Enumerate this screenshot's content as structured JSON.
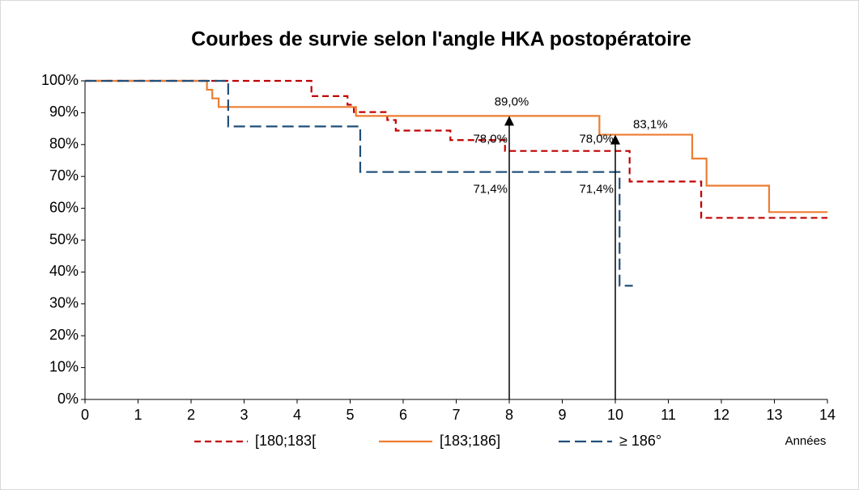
{
  "chart_data": {
    "type": "step",
    "title": "Courbes de survie selon l'angle HKA postopératoire",
    "x_label": "Années",
    "xlim": [
      0,
      14
    ],
    "xticks": [
      0,
      1,
      2,
      3,
      4,
      5,
      6,
      7,
      8,
      9,
      10,
      11,
      12,
      13,
      14
    ],
    "ylim": [
      0,
      100
    ],
    "yticks": [
      {
        "value": 0,
        "label": "0%"
      },
      {
        "value": 10,
        "label": "10%"
      },
      {
        "value": 20,
        "label": "20%"
      },
      {
        "value": 30,
        "label": "30%"
      },
      {
        "value": 40,
        "label": "40%"
      },
      {
        "value": 50,
        "label": "50%"
      },
      {
        "value": 60,
        "label": "60%"
      },
      {
        "value": 70,
        "label": "70%"
      },
      {
        "value": 80,
        "label": "80%"
      },
      {
        "value": 90,
        "label": "90%"
      },
      {
        "value": 100,
        "label": "100%"
      }
    ],
    "legend": "bottom",
    "series": [
      {
        "name": "[180;183[",
        "color": "#c00000",
        "dash": "dashed",
        "x": [
          0,
          4.27,
          4.95,
          5.07,
          5.7,
          5.86,
          6.89,
          7.92,
          10.27,
          11.62,
          14
        ],
        "values": [
          100,
          95.2,
          92.5,
          90.2,
          87.7,
          84.4,
          81.4,
          78.0,
          68.4,
          57.0,
          57.0
        ]
      },
      {
        "name": "[183;186]",
        "color": "#ed7d31",
        "dash": "solid",
        "x": [
          0,
          2.3,
          2.4,
          2.52,
          5.11,
          9.7,
          11.45,
          11.72,
          12.9,
          14
        ],
        "values": [
          100,
          97.2,
          94.5,
          91.8,
          89.0,
          83.1,
          75.6,
          67.1,
          58.8,
          58.8
        ]
      },
      {
        "name": "≥ 186°",
        "color": "#1f4e79",
        "dash": "longdash",
        "x": [
          0,
          2.7,
          5.19,
          10.08,
          10.33
        ],
        "values": [
          100,
          85.7,
          71.4,
          35.7,
          35.7
        ]
      }
    ],
    "arrows": [
      {
        "x": 8,
        "y": 89.0,
        "label": "89,0%"
      },
      {
        "x": 10,
        "y": 83.1,
        "label": "83,1%"
      }
    ],
    "level_labels": [
      {
        "x": 8,
        "y": 78.0,
        "label": "78,0%"
      },
      {
        "x": 8,
        "y": 71.4,
        "label": "71,4%"
      },
      {
        "x": 10,
        "y": 78.0,
        "label": "78,0%"
      },
      {
        "x": 10,
        "y": 71.4,
        "label": "71,4%"
      }
    ]
  }
}
